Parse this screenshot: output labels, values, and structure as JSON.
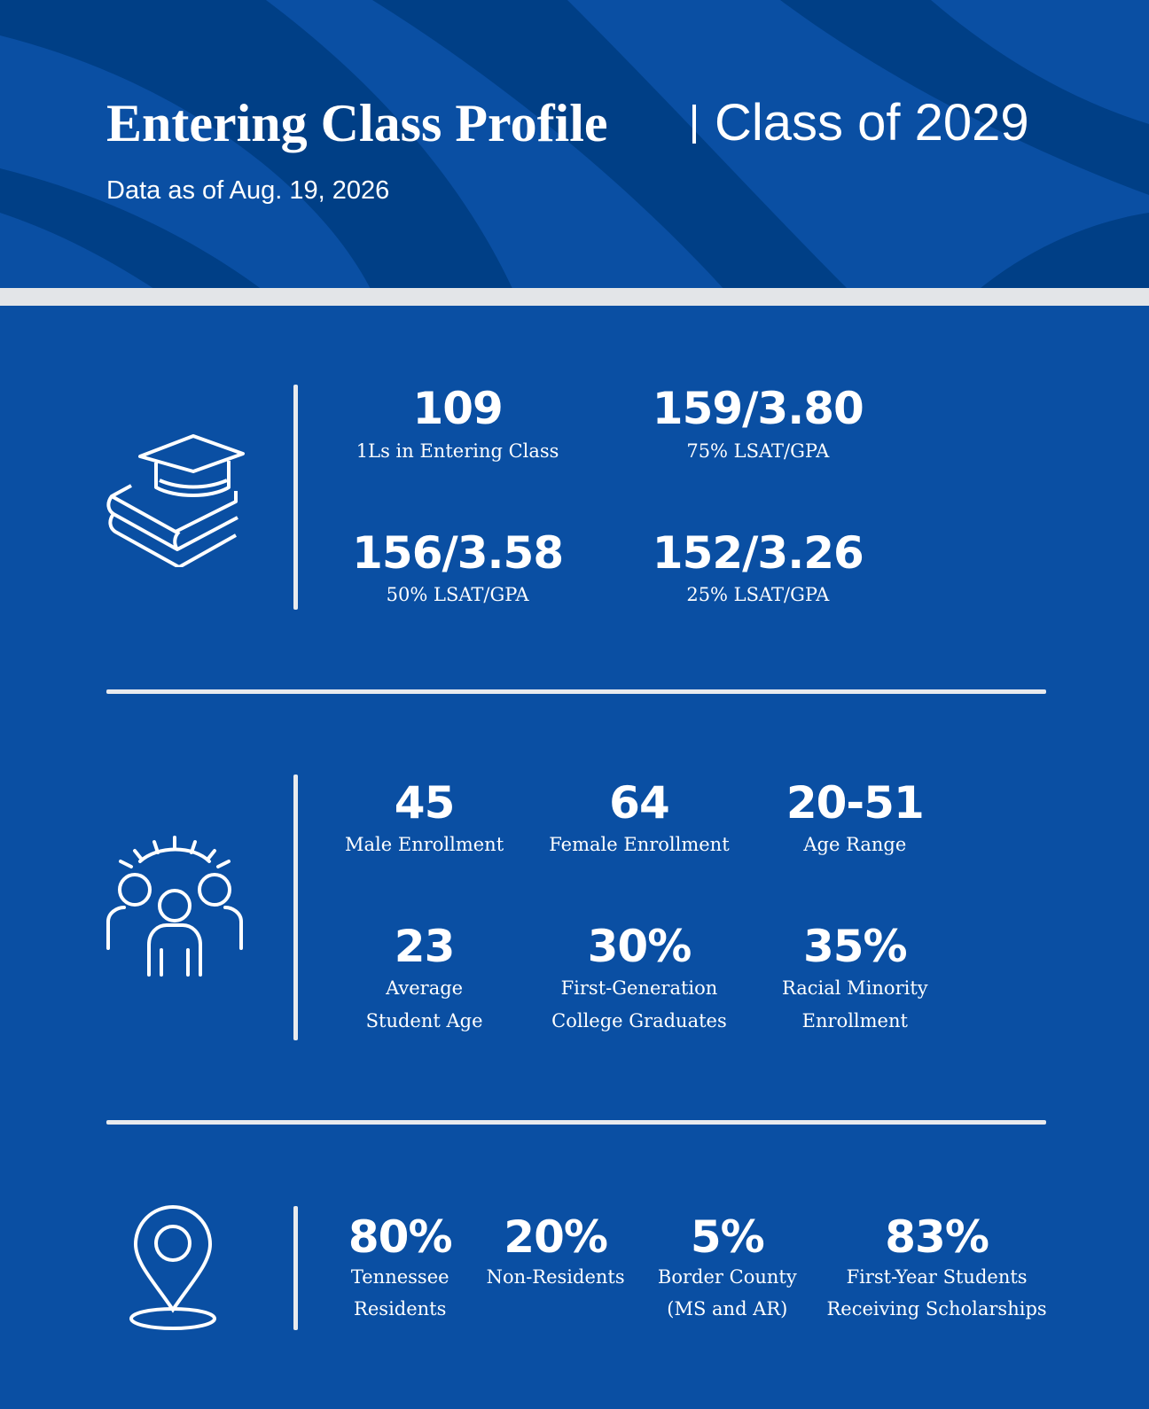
{
  "header": {
    "title": "Entering Class Profile",
    "subtitle": "Class of 2029",
    "date": "Data as of Aug. 19, 2026"
  },
  "sections": [
    {
      "stats": [
        {
          "value": "109",
          "label": [
            "1Ls in Entering Class"
          ]
        },
        {
          "value": "159/3.80",
          "label": [
            "75% LSAT/GPA"
          ]
        },
        {
          "value": "156/3.58",
          "label": [
            "50% LSAT/GPA"
          ]
        },
        {
          "value": "152/3.26",
          "label": [
            "25% LSAT/GPA"
          ]
        }
      ]
    },
    {
      "stats": [
        {
          "value": "45",
          "label": [
            "Male Enrollment"
          ]
        },
        {
          "value": "64",
          "label": [
            "Female Enrollment"
          ]
        },
        {
          "value": "20-51",
          "label": [
            "Age Range"
          ]
        },
        {
          "value": "23",
          "label": [
            "Average",
            "Student Age"
          ]
        },
        {
          "value": "30%",
          "label": [
            "First-Generation",
            "College Graduates"
          ]
        },
        {
          "value": "35%",
          "label": [
            "Racial Minority",
            "Enrollment"
          ]
        }
      ]
    },
    {
      "stats": [
        {
          "value": "80%",
          "label": [
            "Tennessee",
            "Residents"
          ]
        },
        {
          "value": "20%",
          "label": [
            "Non-Residents"
          ]
        },
        {
          "value": "5%",
          "label": [
            "Border County",
            "(MS and AR)"
          ]
        },
        {
          "value": "83%",
          "label": [
            "First-Year Students",
            "Receiving Scholarships"
          ]
        }
      ]
    }
  ]
}
